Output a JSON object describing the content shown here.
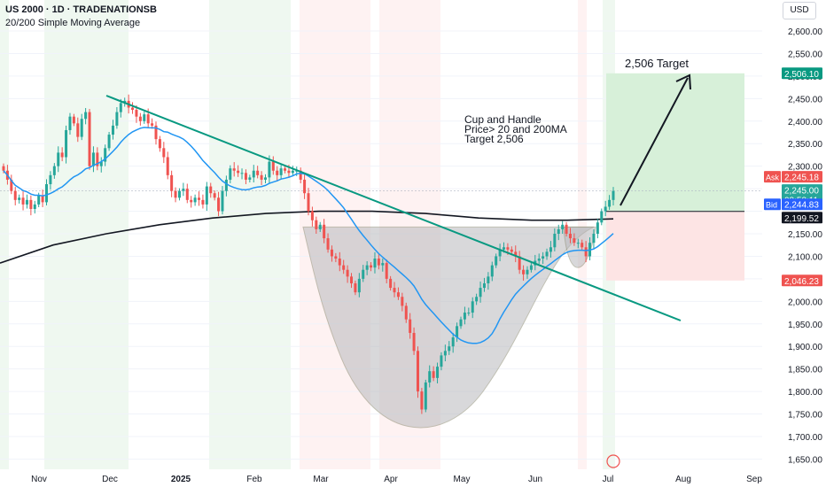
{
  "header": {
    "symbol_line": "US 2000 · 1D · TRADENATIONSB",
    "indicator_line": "20/200 Simple Moving Average"
  },
  "currency": "USD",
  "annotation_text": "Cup and Handle\nPrice> 20 and 200MA\nTarget 2,506",
  "target_label": "2,506 Target",
  "colors": {
    "bull": "#26a69a",
    "bear": "#ef5350",
    "ma20": "#2196f3",
    "ma200": "#131722",
    "trendline": "#089981",
    "profit_zone": "#c8e6c9",
    "loss_zone": "#fde0e0"
  },
  "chart_data": {
    "type": "candlestick",
    "title": "US 2000 · 1D · TRADENATIONSB",
    "y_axis": {
      "ticks": [
        "2,600.00",
        "2,550.00",
        "2,500.00",
        "2,450.00",
        "2,400.00",
        "2,350.00",
        "2,300.00",
        "2,250.00",
        "2,150.00",
        "2,100.00",
        "2,050.00",
        "2,000.00",
        "1,950.00",
        "1,900.00",
        "1,850.00",
        "1,800.00",
        "1,750.00",
        "1,700.00",
        "1,650.00"
      ],
      "range": [
        1630,
        2630
      ]
    },
    "x_axis": {
      "ticks": [
        "Nov",
        "Dec",
        "2025",
        "Feb",
        "Mar",
        "Apr",
        "May",
        "Jun",
        "Jul",
        "Aug",
        "Sep"
      ]
    },
    "price_labels": [
      {
        "label": "",
        "value": "2,506.10",
        "price": 2506.1,
        "color": "#089981"
      },
      {
        "label": "Ask",
        "value": "2,245.18",
        "price": 2245.18,
        "color": "#ef5350"
      },
      {
        "label": "",
        "value": "2,245.00",
        "sub": "08:58:11",
        "price": 2245.0,
        "color": "#26a69a"
      },
      {
        "label": "Bid",
        "value": "2,244.83",
        "price": 2244.83,
        "color": "#2962ff"
      },
      {
        "label": "",
        "value": "2,199.52",
        "price": 2199.52,
        "color": "#131722"
      },
      {
        "label": "",
        "value": "2,046.23",
        "price": 2046.23,
        "color": "#ef5350"
      }
    ],
    "series_close": [
      2290,
      2270,
      2245,
      2225,
      2230,
      2215,
      2225,
      2205,
      2215,
      2235,
      2220,
      2260,
      2280,
      2300,
      2330,
      2320,
      2380,
      2410,
      2395,
      2365,
      2405,
      2420,
      2300,
      2330,
      2300,
      2310,
      2340,
      2370,
      2390,
      2420,
      2440,
      2445,
      2430,
      2425,
      2410,
      2400,
      2415,
      2395,
      2390,
      2360,
      2340,
      2320,
      2280,
      2245,
      2230,
      2245,
      2250,
      2225,
      2220,
      2230,
      2225,
      2215,
      2255,
      2240,
      2230,
      2200,
      2245,
      2270,
      2295,
      2290,
      2285,
      2285,
      2270,
      2275,
      2290,
      2280,
      2270,
      2275,
      2310,
      2290,
      2280,
      2295,
      2290,
      2285,
      2290,
      2290,
      2270,
      2240,
      2200,
      2180,
      2160,
      2170,
      2140,
      2115,
      2100,
      2095,
      2080,
      2070,
      2055,
      2040,
      2020,
      2050,
      2070,
      2080,
      2075,
      2095,
      2080,
      2085,
      2050,
      2030,
      2020,
      2010,
      1990,
      1960,
      1930,
      1890,
      1800,
      1760,
      1820,
      1845,
      1830,
      1855,
      1880,
      1890,
      1900,
      1920,
      1945,
      1960,
      1975,
      1975,
      2000,
      2010,
      2030,
      2040,
      2055,
      2080,
      2100,
      2115,
      2120,
      2115,
      2110,
      2100,
      2070,
      2060,
      2070,
      2080,
      2090,
      2095,
      2100,
      2110,
      2120,
      2150,
      2160,
      2170,
      2150,
      2140,
      2130,
      2130,
      2120,
      2100,
      2130,
      2150,
      2175,
      2200,
      2210,
      2225,
      2245
    ]
  }
}
